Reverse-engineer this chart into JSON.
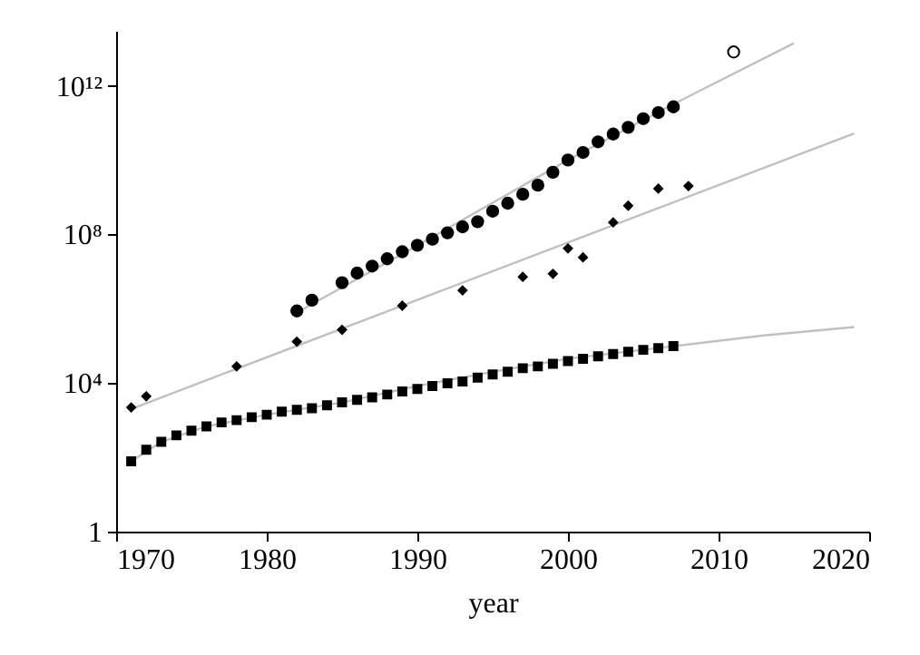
{
  "chart_data": {
    "type": "scatter",
    "xlabel": "year",
    "xlim": [
      1970,
      2020
    ],
    "xticks": [
      1970,
      1980,
      1990,
      2000,
      2010,
      2020
    ],
    "log": "y",
    "ylim": [
      1,
      30000000000000
    ],
    "yticks": [
      1,
      {
        "value": 10000,
        "label": "10⁴"
      },
      {
        "value": 100000000,
        "label": "10⁸"
      },
      {
        "value": 1000000000000,
        "label": "10¹²"
      }
    ],
    "series": [
      {
        "type": "line",
        "color": "#c0c0c0",
        "marker": "none",
        "line_style": "solid",
        "x": [
          1982,
          1990,
          2000,
          2007,
          2015
        ],
        "values": [
          790000,
          50000000,
          10000000000,
          320000000000,
          14000000000000
        ]
      },
      {
        "type": "line",
        "color": "#c0c0c0",
        "marker": "none",
        "line_style": "solid",
        "x": [
          1971,
          2019
        ],
        "values": [
          2000,
          52000000000
        ]
      },
      {
        "type": "line",
        "color": "#c0c0c0",
        "marker": "none",
        "line_style": "solid",
        "x": [
          1971,
          1973,
          1976,
          1980,
          1985,
          1990,
          1995,
          2000,
          2007,
          2013,
          2019
        ],
        "values": [
          78,
          260,
          680,
          1400,
          3000,
          8300,
          20000,
          45000,
          98000,
          190000,
          320000
        ]
      },
      {
        "color": "#000000",
        "marker": "circle",
        "x": [
          1982,
          1983,
          1985,
          1986,
          1987,
          1988,
          1989,
          1990,
          1991,
          1992,
          1993,
          1994,
          1995,
          1996,
          1997,
          1998,
          1999,
          2000,
          2001,
          2002,
          2003,
          2004,
          2005,
          2006,
          2007
        ],
        "values": [
          870000,
          1700000,
          5000000,
          9100000,
          14000000,
          22000000,
          34000000,
          51000000,
          74000000,
          110000000,
          160000000,
          220000000,
          420000000,
          690000000,
          1200000000,
          2100000000,
          4700000000,
          10000000000,
          16000000000,
          31000000000,
          50000000000,
          76000000000,
          130000000000,
          190000000000,
          270000000000
        ]
      },
      {
        "color": "#ffffff",
        "marker": "circle",
        "x": [
          2011
        ],
        "values": [
          8100000000000
        ]
      },
      {
        "color": "#000000",
        "marker": "diamond",
        "x": [
          1971,
          1972,
          1978,
          1982,
          1985,
          1989,
          1993,
          1997,
          1999,
          2000,
          2001,
          2003,
          2004,
          2006,
          2008
        ],
        "values": [
          2200,
          4400,
          28000,
          130000,
          270000,
          1200000,
          3100000,
          7200000,
          8700000,
          42000000,
          24000000,
          210000000,
          590000000,
          1700000000,
          2000000000
        ]
      },
      {
        "color": "#000000",
        "marker": "square",
        "x": [
          1971,
          1972,
          1973,
          1974,
          1975,
          1976,
          1977,
          1978,
          1979,
          1980,
          1981,
          1982,
          1983,
          1984,
          1985,
          1986,
          1987,
          1988,
          1989,
          1990,
          1991,
          1992,
          1993,
          1994,
          1995,
          1996,
          1997,
          1998,
          1999,
          2000,
          2001,
          2002,
          2003,
          2004,
          2005,
          2006,
          2007
        ],
        "values": [
          78,
          160,
          260,
          390,
          520,
          680,
          870,
          1000,
          1200,
          1400,
          1700,
          1900,
          2100,
          2500,
          3000,
          3500,
          4100,
          4900,
          5900,
          6900,
          8300,
          9800,
          11000,
          14000,
          17000,
          20000,
          25000,
          28000,
          33000,
          39000,
          45000,
          52000,
          60000,
          69000,
          78000,
          87000,
          98000
        ]
      }
    ]
  }
}
